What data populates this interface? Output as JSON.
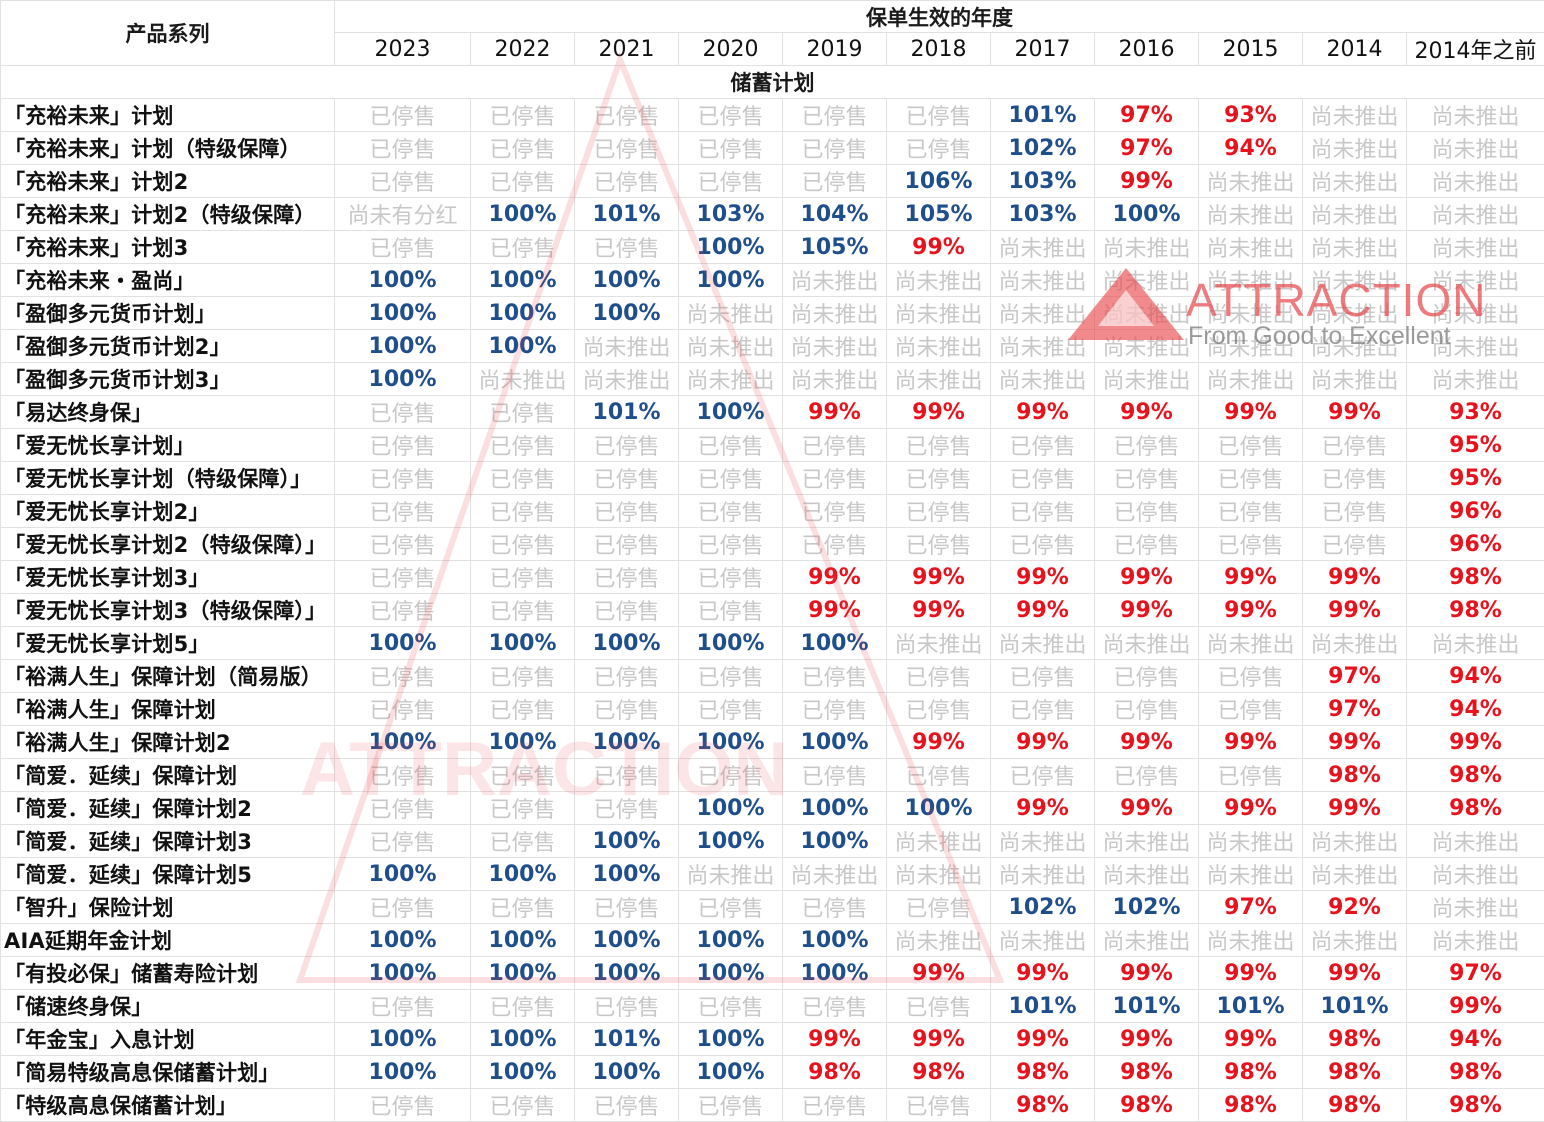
{
  "header": {
    "product_series_label": "产品系列",
    "policy_year_label": "保单生效的年度",
    "years": [
      "2023",
      "2022",
      "2021",
      "2020",
      "2019",
      "2018",
      "2017",
      "2016",
      "2015",
      "2014",
      "2014年之前"
    ]
  },
  "section": {
    "title": "储蓄计划"
  },
  "status_labels": {
    "discontinued": "已停售",
    "not_launched": "尚未推出",
    "no_dividend": "尚未有分红"
  },
  "colors": {
    "blue_value": "#1f4e8c",
    "red_value": "#e8121c",
    "gray_status": "#c8c8c8",
    "watermark_red": "#e8484c",
    "watermark_gray": "#9aa3b3"
  },
  "watermark": {
    "brand": "ATTRACTION",
    "tagline": "From Good to Excellent",
    "center_text": "ATTRACTION"
  },
  "rows": [
    {
      "name": "「充裕未来」计划",
      "values": [
        "已停售",
        "已停售",
        "已停售",
        "已停售",
        "已停售",
        "已停售",
        "101%",
        "97%",
        "93%",
        "尚未推出",
        "尚未推出"
      ]
    },
    {
      "name": "「充裕未来」计划（特级保障）",
      "values": [
        "已停售",
        "已停售",
        "已停售",
        "已停售",
        "已停售",
        "已停售",
        "102%",
        "97%",
        "94%",
        "尚未推出",
        "尚未推出"
      ]
    },
    {
      "name": "「充裕未来」计划2",
      "values": [
        "已停售",
        "已停售",
        "已停售",
        "已停售",
        "已停售",
        "106%",
        "103%",
        "99%",
        "尚未推出",
        "尚未推出",
        "尚未推出"
      ]
    },
    {
      "name": "「充裕未来」计划2（特级保障）",
      "values": [
        "尚未有分红",
        "100%",
        "101%",
        "103%",
        "104%",
        "105%",
        "103%",
        "100%",
        "尚未推出",
        "尚未推出",
        "尚未推出"
      ]
    },
    {
      "name": "「充裕未来」计划3",
      "values": [
        "已停售",
        "已停售",
        "已停售",
        "100%",
        "105%",
        "99%",
        "尚未推出",
        "尚未推出",
        "尚未推出",
        "尚未推出",
        "尚未推出"
      ]
    },
    {
      "name": "「充裕未来・盈尚」",
      "values": [
        "100%",
        "100%",
        "100%",
        "100%",
        "尚未推出",
        "尚未推出",
        "尚未推出",
        "尚未推出",
        "尚未推出",
        "尚未推出",
        "尚未推出"
      ]
    },
    {
      "name": "「盈御多元货币计划」",
      "values": [
        "100%",
        "100%",
        "100%",
        "尚未推出",
        "尚未推出",
        "尚未推出",
        "尚未推出",
        "尚未推出",
        "尚未推出",
        "尚未推出",
        "尚未推出"
      ]
    },
    {
      "name": "「盈御多元货币计划2」",
      "values": [
        "100%",
        "100%",
        "尚未推出",
        "尚未推出",
        "尚未推出",
        "尚未推出",
        "尚未推出",
        "尚未推出",
        "尚未推出",
        "尚未推出",
        "尚未推出"
      ]
    },
    {
      "name": "「盈御多元货币计划3」",
      "values": [
        "100%",
        "尚未推出",
        "尚未推出",
        "尚未推出",
        "尚未推出",
        "尚未推出",
        "尚未推出",
        "尚未推出",
        "尚未推出",
        "尚未推出",
        "尚未推出"
      ]
    },
    {
      "name": "「易达终身保」",
      "values": [
        "已停售",
        "已停售",
        "101%",
        "100%",
        "99%",
        "99%",
        "99%",
        "99%",
        "99%",
        "99%",
        "93%"
      ]
    },
    {
      "name": "「爱无忧长享计划」",
      "values": [
        "已停售",
        "已停售",
        "已停售",
        "已停售",
        "已停售",
        "已停售",
        "已停售",
        "已停售",
        "已停售",
        "已停售",
        "95%"
      ]
    },
    {
      "name": "「爱无忧长享计划（特级保障）」",
      "values": [
        "已停售",
        "已停售",
        "已停售",
        "已停售",
        "已停售",
        "已停售",
        "已停售",
        "已停售",
        "已停售",
        "已停售",
        "95%"
      ]
    },
    {
      "name": "「爱无忧长享计划2」",
      "values": [
        "已停售",
        "已停售",
        "已停售",
        "已停售",
        "已停售",
        "已停售",
        "已停售",
        "已停售",
        "已停售",
        "已停售",
        "96%"
      ]
    },
    {
      "name": "「爱无忧长享计划2（特级保障）」",
      "values": [
        "已停售",
        "已停售",
        "已停售",
        "已停售",
        "已停售",
        "已停售",
        "已停售",
        "已停售",
        "已停售",
        "已停售",
        "96%"
      ]
    },
    {
      "name": "「爱无忧长享计划3」",
      "values": [
        "已停售",
        "已停售",
        "已停售",
        "已停售",
        "99%",
        "99%",
        "99%",
        "99%",
        "99%",
        "99%",
        "98%"
      ]
    },
    {
      "name": "「爱无忧长享计划3（特级保障）」",
      "values": [
        "已停售",
        "已停售",
        "已停售",
        "已停售",
        "99%",
        "99%",
        "99%",
        "99%",
        "99%",
        "99%",
        "98%"
      ]
    },
    {
      "name": "「爱无忧长享计划5」",
      "values": [
        "100%",
        "100%",
        "100%",
        "100%",
        "100%",
        "尚未推出",
        "尚未推出",
        "尚未推出",
        "尚未推出",
        "尚未推出",
        "尚未推出"
      ]
    },
    {
      "name": "「裕满人生」保障计划（简易版）",
      "values": [
        "已停售",
        "已停售",
        "已停售",
        "已停售",
        "已停售",
        "已停售",
        "已停售",
        "已停售",
        "已停售",
        "97%",
        "94%"
      ]
    },
    {
      "name": "「裕满人生」保障计划",
      "values": [
        "已停售",
        "已停售",
        "已停售",
        "已停售",
        "已停售",
        "已停售",
        "已停售",
        "已停售",
        "已停售",
        "97%",
        "94%"
      ]
    },
    {
      "name": "「裕满人生」保障计划2",
      "values": [
        "100%",
        "100%",
        "100%",
        "100%",
        "100%",
        "99%",
        "99%",
        "99%",
        "99%",
        "99%",
        "99%"
      ]
    },
    {
      "name": "「简爱．延续」保障计划",
      "values": [
        "已停售",
        "已停售",
        "已停售",
        "已停售",
        "已停售",
        "已停售",
        "已停售",
        "已停售",
        "已停售",
        "98%",
        "98%"
      ]
    },
    {
      "name": "「简爱．延续」保障计划2",
      "values": [
        "已停售",
        "已停售",
        "已停售",
        "100%",
        "100%",
        "100%",
        "99%",
        "99%",
        "99%",
        "99%",
        "98%"
      ]
    },
    {
      "name": "「简爱．延续」保障计划3",
      "values": [
        "已停售",
        "已停售",
        "100%",
        "100%",
        "100%",
        "尚未推出",
        "尚未推出",
        "尚未推出",
        "尚未推出",
        "尚未推出",
        "尚未推出"
      ]
    },
    {
      "name": "「简爱．延续」保障计划5",
      "values": [
        "100%",
        "100%",
        "100%",
        "尚未推出",
        "尚未推出",
        "尚未推出",
        "尚未推出",
        "尚未推出",
        "尚未推出",
        "尚未推出",
        "尚未推出"
      ]
    },
    {
      "name": "「智升」保险计划",
      "values": [
        "已停售",
        "已停售",
        "已停售",
        "已停售",
        "已停售",
        "已停售",
        "102%",
        "102%",
        "97%",
        "92%",
        "尚未推出"
      ]
    },
    {
      "name": "AIA延期年金计划",
      "values": [
        "100%",
        "100%",
        "100%",
        "100%",
        "100%",
        "尚未推出",
        "尚未推出",
        "尚未推出",
        "尚未推出",
        "尚未推出",
        "尚未推出"
      ]
    },
    {
      "name": "「有投必保」储蓄寿险计划",
      "values": [
        "100%",
        "100%",
        "100%",
        "100%",
        "100%",
        "99%",
        "99%",
        "99%",
        "99%",
        "99%",
        "97%"
      ]
    },
    {
      "name": "「储速终身保」",
      "values": [
        "已停售",
        "已停售",
        "已停售",
        "已停售",
        "已停售",
        "已停售",
        "101%",
        "101%",
        "101%",
        "101%",
        "99%"
      ]
    },
    {
      "name": "「年金宝」入息计划",
      "values": [
        "100%",
        "100%",
        "101%",
        "100%",
        "99%",
        "99%",
        "99%",
        "99%",
        "99%",
        "98%",
        "94%"
      ]
    },
    {
      "name": "「简易特级高息保储蓄计划」",
      "values": [
        "100%",
        "100%",
        "100%",
        "100%",
        "98%",
        "98%",
        "98%",
        "98%",
        "98%",
        "98%",
        "98%"
      ]
    },
    {
      "name": "「特级高息保储蓄计划」",
      "values": [
        "已停售",
        "已停售",
        "已停售",
        "已停售",
        "已停售",
        "已停售",
        "98%",
        "98%",
        "98%",
        "98%",
        "98%"
      ]
    }
  ]
}
